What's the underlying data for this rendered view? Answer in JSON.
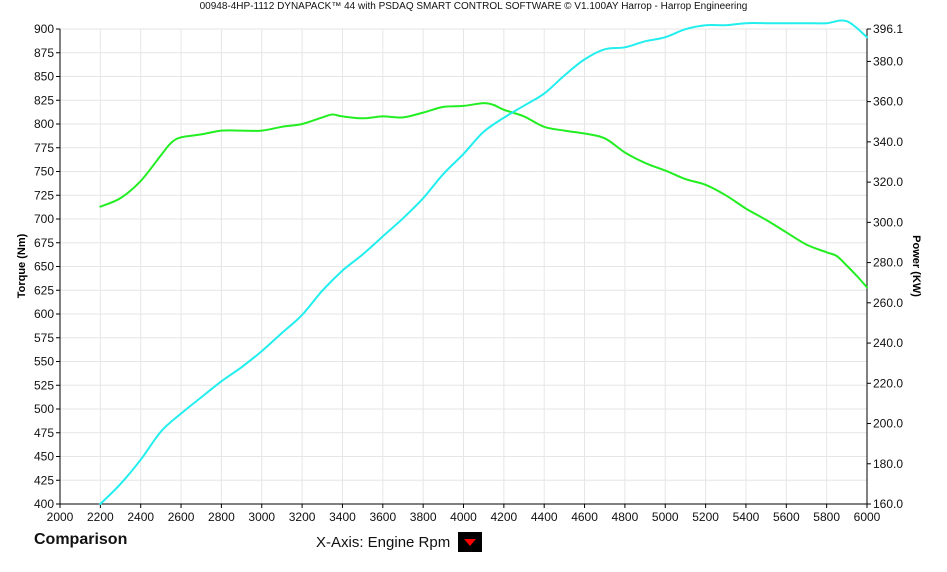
{
  "title": "00948-4HP-1112 DYNAPACK™ 44 with PSDAQ SMART CONTROL SOFTWARE © V1.100AY Harrop - Harrop Engineering",
  "footer": {
    "label": "Comparison",
    "x_axis_caption": "X-Axis: Engine Rpm"
  },
  "colors": {
    "torque": "#22ee22",
    "power": "#22eeee",
    "grid": "#e6e6e6",
    "dropdown_icon": "#ff0000"
  },
  "icons": {
    "x_axis_dropdown": "red-down-triangle-icon"
  },
  "chart_data": {
    "type": "line",
    "title": "00948-4HP-1112 DYNAPACK™ 44 with PSDAQ SMART CONTROL SOFTWARE © V1.100AY Harrop - Harrop Engineering",
    "xlabel": "",
    "ylabel_left": "Torque (Nm)",
    "ylabel_right": "Power (KW)",
    "xlim": [
      2000,
      6000
    ],
    "ylim_left": [
      400,
      900
    ],
    "ylim_right": [
      160,
      396.1
    ],
    "x_ticks": [
      "2000",
      "2200",
      "2400",
      "2600",
      "2800",
      "3000",
      "3200",
      "3400",
      "3600",
      "3800",
      "4000",
      "4200",
      "4400",
      "4600",
      "4800",
      "5000",
      "5200",
      "5400",
      "5600",
      "5800",
      "6000"
    ],
    "y_ticks_left": [
      "400",
      "425",
      "450",
      "475",
      "500",
      "525",
      "550",
      "575",
      "600",
      "625",
      "650",
      "675",
      "700",
      "725",
      "750",
      "775",
      "800",
      "825",
      "850",
      "875",
      "900"
    ],
    "y_ticks_right": [
      "160.0",
      "180.0",
      "200.0",
      "220.0",
      "240.0",
      "260.0",
      "280.0",
      "300.0",
      "320.0",
      "340.0",
      "360.0",
      "380.0",
      "396.1"
    ],
    "grid": true,
    "series": [
      {
        "axis": "left",
        "color": "#22ee22",
        "points": [
          [
            2200,
            713
          ],
          [
            2300,
            722
          ],
          [
            2400,
            740
          ],
          [
            2500,
            767
          ],
          [
            2550,
            780
          ],
          [
            2600,
            786
          ],
          [
            2700,
            789
          ],
          [
            2800,
            793
          ],
          [
            2900,
            793
          ],
          [
            3000,
            793
          ],
          [
            3100,
            797
          ],
          [
            3200,
            800
          ],
          [
            3300,
            807
          ],
          [
            3350,
            810
          ],
          [
            3400,
            808
          ],
          [
            3500,
            806
          ],
          [
            3600,
            808
          ],
          [
            3700,
            807
          ],
          [
            3800,
            812
          ],
          [
            3900,
            818
          ],
          [
            4000,
            819
          ],
          [
            4100,
            822
          ],
          [
            4150,
            820
          ],
          [
            4200,
            815
          ],
          [
            4300,
            808
          ],
          [
            4400,
            797
          ],
          [
            4500,
            793
          ],
          [
            4600,
            790
          ],
          [
            4700,
            785
          ],
          [
            4800,
            770
          ],
          [
            4900,
            759
          ],
          [
            5000,
            751
          ],
          [
            5100,
            742
          ],
          [
            5200,
            736
          ],
          [
            5300,
            725
          ],
          [
            5400,
            711
          ],
          [
            5500,
            699
          ],
          [
            5600,
            686
          ],
          [
            5700,
            673
          ],
          [
            5800,
            665
          ],
          [
            5850,
            661
          ],
          [
            5900,
            651
          ],
          [
            5950,
            640
          ],
          [
            6000,
            628
          ]
        ]
      },
      {
        "axis": "right",
        "color": "#22eeee",
        "points": [
          [
            2200,
            160
          ],
          [
            2300,
            170
          ],
          [
            2400,
            182
          ],
          [
            2500,
            196
          ],
          [
            2600,
            205
          ],
          [
            2700,
            213
          ],
          [
            2800,
            221
          ],
          [
            2900,
            228
          ],
          [
            3000,
            236
          ],
          [
            3100,
            245
          ],
          [
            3200,
            254
          ],
          [
            3300,
            266
          ],
          [
            3400,
            276
          ],
          [
            3500,
            284
          ],
          [
            3600,
            293
          ],
          [
            3700,
            302
          ],
          [
            3800,
            312
          ],
          [
            3900,
            324
          ],
          [
            4000,
            334
          ],
          [
            4100,
            345
          ],
          [
            4200,
            352
          ],
          [
            4300,
            358
          ],
          [
            4400,
            364
          ],
          [
            4500,
            373
          ],
          [
            4600,
            381
          ],
          [
            4700,
            386
          ],
          [
            4800,
            387
          ],
          [
            4900,
            390
          ],
          [
            5000,
            392
          ],
          [
            5100,
            396
          ],
          [
            5200,
            398
          ],
          [
            5300,
            398
          ],
          [
            5400,
            399
          ],
          [
            5500,
            399
          ],
          [
            5600,
            399
          ],
          [
            5700,
            399
          ],
          [
            5800,
            399
          ],
          [
            5900,
            400
          ],
          [
            6000,
            392
          ]
        ]
      }
    ]
  }
}
